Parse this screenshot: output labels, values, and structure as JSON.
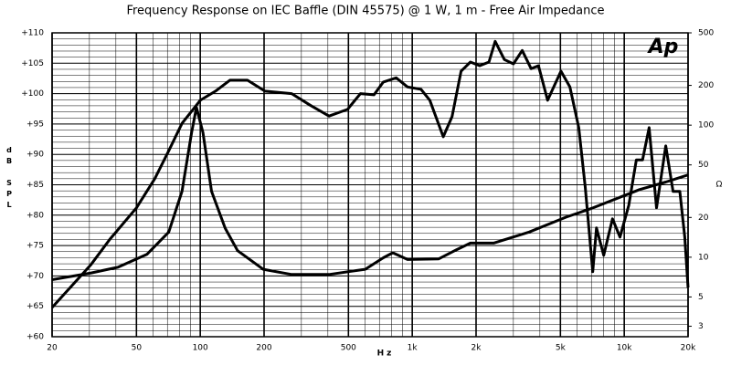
{
  "chart_data": {
    "type": "line",
    "title": "Frequency Response on IEC Baffle (DIN 45575) @ 1 W, 1 m - Free Air Impedance",
    "xlabel": "Hz",
    "ylabel": "dB SPL",
    "y2label": "Ω",
    "logo": "Ap",
    "xscale": "log",
    "y2scale": "log",
    "grid": true,
    "xlim": [
      20,
      20000
    ],
    "xticks": [
      20,
      50,
      100,
      200,
      500,
      {
        "value": 1000,
        "label": "1k"
      },
      {
        "value": 2000,
        "label": "2k"
      },
      {
        "value": 5000,
        "label": "5k"
      },
      {
        "value": 10000,
        "label": "10k"
      },
      {
        "value": 20000,
        "label": "20k"
      }
    ],
    "xminor": [
      30,
      40,
      60,
      70,
      80,
      90,
      300,
      400,
      600,
      700,
      800,
      900,
      3000,
      4000,
      6000,
      7000,
      8000,
      9000
    ],
    "ylim": [
      60,
      110
    ],
    "yticks": [
      {
        "value": 60,
        "label": "+60"
      },
      {
        "value": 65,
        "label": "+65"
      },
      {
        "value": 70,
        "label": "+70"
      },
      {
        "value": 75,
        "label": "+75"
      },
      {
        "value": 80,
        "label": "+80"
      },
      {
        "value": 85,
        "label": "+85"
      },
      {
        "value": 90,
        "label": "+90"
      },
      {
        "value": 95,
        "label": "+95"
      },
      {
        "value": 100,
        "label": "+100"
      },
      {
        "value": 105,
        "label": "+105"
      },
      {
        "value": 110,
        "label": "+110"
      }
    ],
    "y_minor_step": 1,
    "y2lim": [
      2.5,
      500
    ],
    "y2ticks": [
      3,
      5,
      10,
      20,
      50,
      100,
      200,
      500
    ],
    "series": [
      {
        "name": "SPL",
        "color": "#000000",
        "x": [
          20,
          30.6,
          37.4,
          50,
          61,
          71,
          82,
          100,
          118,
          138,
          167,
          202,
          270,
          330,
          405,
          495,
          570,
          660,
          730,
          840,
          950,
          1100,
          1210,
          1400,
          1540,
          1700,
          1880,
          2080,
          2300,
          2460,
          2720,
          3000,
          3300,
          3640,
          3940,
          4350,
          5030,
          5540,
          6100,
          6550,
          7100,
          7400,
          8000,
          8800,
          9550,
          10500,
          11400,
          12200,
          13100,
          14200,
          15700,
          17000,
          18300,
          19300,
          20000
        ],
        "values": [
          64.8,
          71.9,
          76,
          81.2,
          86,
          90.6,
          95.1,
          98.9,
          100.4,
          102.2,
          102.2,
          100.4,
          100,
          98.1,
          96.3,
          97.4,
          100,
          99.8,
          101.9,
          102.6,
          101.1,
          100.7,
          98.9,
          92.9,
          96.2,
          103.7,
          105.2,
          104.6,
          105.2,
          108.6,
          105.6,
          104.9,
          107.1,
          104.1,
          104.6,
          98.9,
          103.7,
          101.1,
          94.4,
          84.6,
          70.7,
          77.9,
          73.4,
          79.4,
          76.4,
          81.6,
          89.1,
          89.1,
          94.4,
          81.2,
          91.4,
          83.9,
          83.9,
          76.4,
          68.1
        ]
      },
      {
        "name": "Impedance",
        "color": "#000000",
        "axis": "y2",
        "x": [
          20,
          30.6,
          41,
          56,
          71,
          82,
          91,
          96,
          103,
          113,
          131,
          150,
          198,
          270,
          405,
          600,
          730,
          810,
          950,
          1330,
          1620,
          1880,
          2420,
          3560,
          5310,
          7100,
          11800,
          15700,
          20000
        ],
        "values": [
          6.76,
          7.6,
          8.4,
          10.5,
          15.5,
          31.6,
          88,
          136,
          88,
          31.6,
          16.6,
          11.2,
          8.1,
          7.4,
          7.4,
          8.1,
          9.9,
          10.8,
          9.6,
          9.7,
          11.4,
          12.8,
          12.8,
          15.5,
          20.1,
          23.6,
          32.5,
          37.1,
          42
        ]
      }
    ]
  }
}
